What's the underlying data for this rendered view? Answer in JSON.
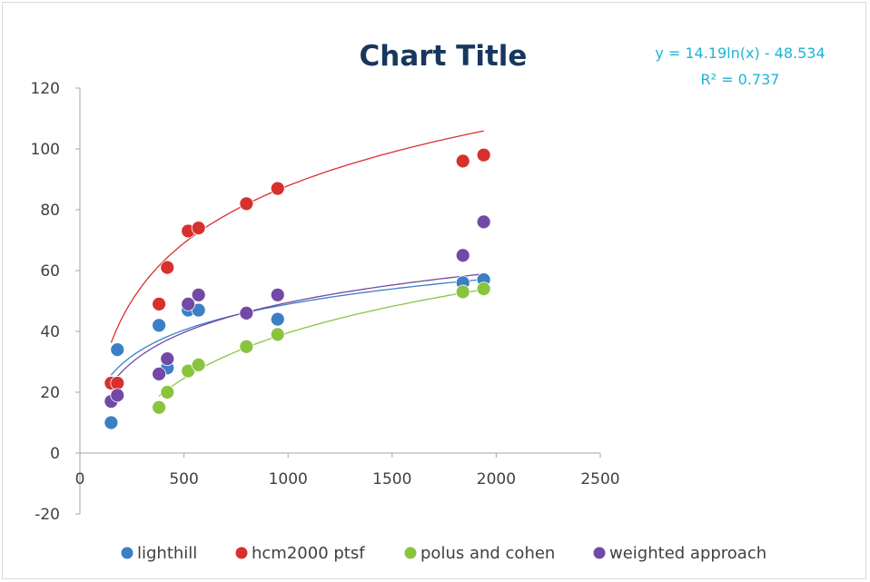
{
  "chart_data": {
    "type": "scatter",
    "title": "Chart Title",
    "xlabel": "",
    "ylabel": "",
    "xlim": [
      0,
      2500
    ],
    "ylim": [
      -20,
      120
    ],
    "x_ticks": [
      "0",
      "500",
      "1000",
      "1500",
      "2000",
      "2500"
    ],
    "y_ticks": [
      "-20",
      "0",
      "20",
      "40",
      "60",
      "80",
      "100",
      "120"
    ],
    "grid": false,
    "legend_position": "bottom",
    "trendline_equation": "y = 14.19ln(x) - 48.534",
    "trendline_r2": "R² = 0.737",
    "series": [
      {
        "name": "lighthill",
        "color": "#3b7fc4",
        "trend": {
          "a": 12.3,
          "b": -36.0
        },
        "points": [
          [
            150,
            10
          ],
          [
            180,
            34
          ],
          [
            380,
            42
          ],
          [
            420,
            28
          ],
          [
            520,
            47
          ],
          [
            570,
            47
          ],
          [
            800,
            46
          ],
          [
            950,
            44
          ],
          [
            1840,
            56
          ],
          [
            1940,
            57
          ]
        ]
      },
      {
        "name": "hcm2000 ptsf",
        "color": "#d7312d",
        "trend": {
          "a": 27.2,
          "b": -100.0
        },
        "points": [
          [
            150,
            23
          ],
          [
            180,
            23
          ],
          [
            380,
            49
          ],
          [
            420,
            61
          ],
          [
            520,
            73
          ],
          [
            570,
            74
          ],
          [
            800,
            82
          ],
          [
            950,
            87
          ],
          [
            1840,
            96
          ],
          [
            1940,
            98
          ]
        ]
      },
      {
        "name": "polus and cohen",
        "color": "#8ac43f",
        "trend": {
          "a": 21.5,
          "b": -109.0
        },
        "points": [
          [
            380,
            15
          ],
          [
            420,
            20
          ],
          [
            520,
            27
          ],
          [
            570,
            29
          ],
          [
            800,
            35
          ],
          [
            950,
            39
          ],
          [
            1840,
            53
          ],
          [
            1940,
            54
          ]
        ]
      },
      {
        "name": "weighted approach",
        "color": "#7349a5",
        "trend": {
          "a": 14.19,
          "b": -48.534
        },
        "points": [
          [
            150,
            17
          ],
          [
            180,
            19
          ],
          [
            380,
            26
          ],
          [
            420,
            31
          ],
          [
            520,
            49
          ],
          [
            570,
            52
          ],
          [
            800,
            46
          ],
          [
            950,
            52
          ],
          [
            1840,
            65
          ],
          [
            1940,
            76
          ]
        ]
      }
    ]
  }
}
